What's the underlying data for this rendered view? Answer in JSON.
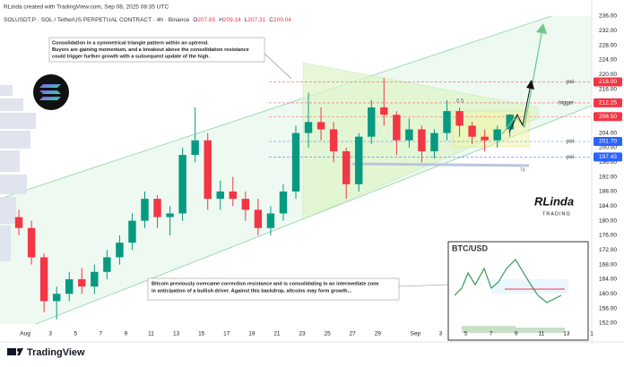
{
  "header": {
    "attribution": "RLinda created with TradingView.com, Sep 08, 2025 08:35 UTC",
    "symbol": "SOLUSDT.P · SOL / TetherUS PERPETUAL CONTRACT · 4h · Binance",
    "ohlc": [
      {
        "key": "O",
        "value": 207.85
      },
      {
        "key": "H",
        "value": 209.14
      },
      {
        "key": "L",
        "value": 207.31
      },
      {
        "key": "C",
        "value": 209.04
      }
    ]
  },
  "chart_data": {
    "type": "candlestick",
    "x": [
      "Jul 31",
      "Aug 1",
      "Aug 2",
      "Aug 3",
      "Aug 4",
      "Aug 5",
      "Aug 6",
      "Aug 7",
      "Aug 8",
      "Aug 9",
      "Aug 10",
      "Aug 11",
      "Aug 12",
      "Aug 13",
      "Aug 14",
      "Aug 15",
      "Aug 16",
      "Aug 17",
      "Aug 18",
      "Aug 19",
      "Aug 20",
      "Aug 21",
      "Aug 22",
      "Aug 23",
      "Aug 24",
      "Aug 25",
      "Aug 26",
      "Aug 27",
      "Aug 28",
      "Aug 29",
      "Aug 30",
      "Aug 31",
      "Sep 1",
      "Sep 2",
      "Sep 3",
      "Sep 4",
      "Sep 5",
      "Sep 6",
      "Sep 7",
      "Sep 8"
    ],
    "open": [
      181,
      178,
      170,
      158,
      160,
      164,
      162,
      166,
      170,
      174,
      180,
      186,
      181,
      182,
      198,
      202,
      186,
      188,
      186,
      183,
      178,
      182,
      188,
      204,
      207,
      205,
      199,
      190,
      203,
      211,
      209,
      202,
      205,
      199,
      204,
      210,
      206,
      203,
      202,
      205
    ],
    "high": [
      183,
      180,
      171,
      162,
      166,
      167,
      168,
      172,
      176,
      182,
      188,
      187,
      184,
      200,
      211,
      204,
      191,
      192,
      188,
      186,
      184,
      190,
      206,
      215,
      211,
      207,
      200,
      204,
      213,
      219,
      210,
      208,
      206,
      205,
      213,
      211,
      207,
      205,
      206,
      209.14
    ],
    "low": [
      176,
      168,
      155,
      153,
      158,
      160,
      160,
      164,
      168,
      172,
      178,
      178,
      176,
      180,
      196,
      183,
      183,
      184,
      180,
      176,
      176,
      180,
      186,
      200,
      202,
      196,
      186,
      188,
      201,
      206,
      198,
      200,
      196,
      197,
      202,
      203,
      201,
      199,
      200,
      203
    ],
    "close": [
      178,
      170,
      158,
      160,
      164,
      162,
      166,
      170,
      174,
      180,
      186,
      181,
      182,
      198,
      202,
      186,
      188,
      186,
      183,
      178,
      182,
      188,
      204,
      207,
      205,
      199,
      190,
      203,
      211,
      209,
      202,
      205,
      199,
      204,
      210,
      206,
      203,
      202,
      205,
      209.04
    ],
    "up_color": "#089981",
    "down_color": "#f23645",
    "xlim": [
      "Jul 30",
      "Sep 15"
    ],
    "xticks": [
      {
        "value": "Aug 1",
        "label": "Aug"
      },
      {
        "value": "Aug 3",
        "label": "3"
      },
      {
        "value": "Aug 5",
        "label": "5"
      },
      {
        "value": "Aug 7",
        "label": "7"
      },
      {
        "value": "Aug 9",
        "label": "9"
      },
      {
        "value": "Aug 11",
        "label": "11"
      },
      {
        "value": "Aug 13",
        "label": "13"
      },
      {
        "value": "Aug 15",
        "label": "15"
      },
      {
        "value": "Aug 17",
        "label": "17"
      },
      {
        "value": "Aug 19",
        "label": "19"
      },
      {
        "value": "Aug 21",
        "label": "21"
      },
      {
        "value": "Aug 23",
        "label": "23"
      },
      {
        "value": "Aug 25",
        "label": "25"
      },
      {
        "value": "Aug 27",
        "label": "27"
      },
      {
        "value": "Aug 29",
        "label": "29"
      },
      {
        "value": "Sep 1",
        "label": "Sep"
      },
      {
        "value": "Sep 3",
        "label": "3"
      },
      {
        "value": "Sep 5",
        "label": "5"
      },
      {
        "value": "Sep 7",
        "label": "7"
      },
      {
        "value": "Sep 9",
        "label": "9"
      },
      {
        "value": "Sep 11",
        "label": "11"
      },
      {
        "value": "Sep 13",
        "label": "13"
      },
      {
        "value": "Sep 15",
        "label": "1"
      }
    ],
    "ylim": [
      151,
      240.4
    ],
    "yticks": [
      {
        "value": 152,
        "label": "152.00"
      },
      {
        "value": 156,
        "label": "156.00"
      },
      {
        "value": 160,
        "label": "160.00"
      },
      {
        "value": 164,
        "label": "164.00"
      },
      {
        "value": 168,
        "label": "168.00"
      },
      {
        "value": 172,
        "label": "172.00"
      },
      {
        "value": 176,
        "label": "176.00"
      },
      {
        "value": 180,
        "label": "180.00"
      },
      {
        "value": 184,
        "label": "184.00"
      },
      {
        "value": 188,
        "label": "188.00"
      },
      {
        "value": 192,
        "label": "192.00"
      },
      {
        "value": 196,
        "label": "196.00"
      },
      {
        "value": 200,
        "label": "200.00"
      },
      {
        "value": 204,
        "label": "204.00"
      },
      {
        "value": 216,
        "label": "216.00"
      },
      {
        "value": 220,
        "label": "220.00"
      },
      {
        "value": 224,
        "label": "224.00"
      },
      {
        "value": 228,
        "label": "228.00"
      },
      {
        "value": 232,
        "label": "232.00"
      },
      {
        "value": 236,
        "label": "236.00"
      }
    ],
    "grid": false,
    "levels": [
      {
        "value": 218,
        "label": "218.00",
        "tag": "poi",
        "color": "#f23645"
      },
      {
        "value": 212.25,
        "label": "212.25",
        "tag": "trigger",
        "color": "#f23645"
      },
      {
        "value": 208.5,
        "label": "208.50",
        "color": "#f23645"
      },
      {
        "value": 201.7,
        "label": "201.70",
        "tag": "poi",
        "color": "#2962ff"
      },
      {
        "value": 197.43,
        "label": "197.43",
        "tag": "poi",
        "color": "#2962ff"
      }
    ],
    "annotations": {
      "note_top": [
        "Consolidation in a symmetrical triangle pattern within an uptrend.",
        "Buyers are gaining momentum, and a breakout above the consolidation resistance",
        "could trigger further growth with a subsequent update of the high."
      ],
      "note_bottom": [
        "Bitcoin previously overcame correction resistance and is consolidating in an intermediate zone",
        "in anticipation of a bullish driver. Against this backdrop, altcoins may form growth..."
      ],
      "fib": "0.5",
      "range": "7d"
    },
    "watermark": [
      "RLinda",
      "TRADING"
    ],
    "inset_title": "BTC/USD"
  },
  "footer": {
    "brand": "TradingView"
  }
}
